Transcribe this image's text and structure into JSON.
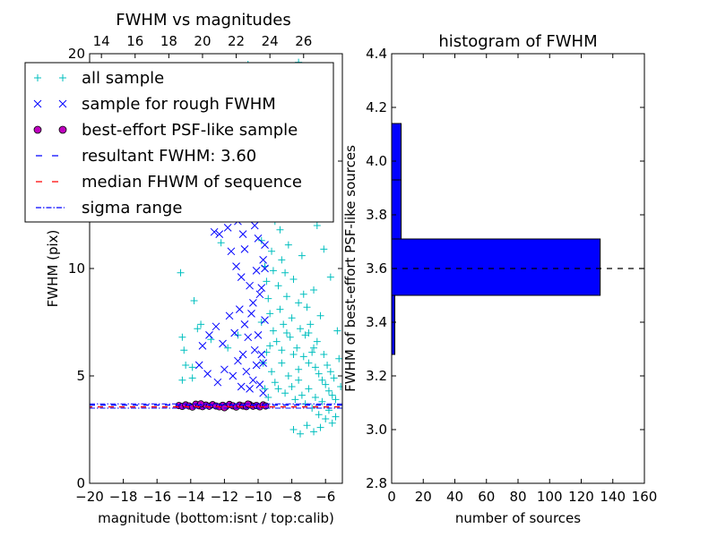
{
  "chart_data": [
    {
      "type": "scatter",
      "title": "FWHM vs magnitudes",
      "xlabel": "magnitude (bottom:isnt / top:calib)",
      "ylabel": "FWHM (pix)",
      "xlim": [
        -20,
        -5
      ],
      "ylim": [
        0,
        20
      ],
      "xticks": [
        "−20",
        "−18",
        "−16",
        "−14",
        "−12",
        "−10",
        "−8",
        "−6"
      ],
      "xtick_values": [
        -20,
        -18,
        -16,
        -14,
        -12,
        -10,
        -8,
        -6
      ],
      "yticks": [
        "0",
        "5",
        "10",
        "15",
        "20"
      ],
      "ytick_values": [
        0,
        5,
        10,
        15,
        20
      ],
      "top_xticks": [
        "14",
        "16",
        "18",
        "20",
        "22",
        "24",
        "26"
      ],
      "top_xtick_values": [
        14,
        16,
        18,
        20,
        22,
        24,
        26
      ],
      "top_axis_offset": 33.3,
      "legend": {
        "placement": "top-left",
        "entries": [
          {
            "label": "all sample",
            "marker": "plus",
            "color": "#00bfbf"
          },
          {
            "label": "sample for rough FWHM",
            "marker": "x",
            "color": "#0000ff"
          },
          {
            "label": "best-effort PSF-like sample",
            "marker": "circle",
            "color": "#bf00bf"
          },
          {
            "label": "resultant FWHM: 3.60",
            "marker": "dashed",
            "color": "#0000ff"
          },
          {
            "label": "median FHWM of sequence",
            "marker": "dashed",
            "color": "#ff0000"
          },
          {
            "label": "sigma range",
            "marker": "dashdot",
            "color": "#0000ff"
          }
        ]
      },
      "resultant_fwhm": 3.6,
      "median_fwhm": 3.6,
      "sigma_range": [
        3.5,
        3.7
      ],
      "series": [
        {
          "name": "all sample",
          "marker": "plus",
          "color": "#00bfbf",
          "points": [
            [
              -14.5,
              6.8
            ],
            [
              -14.4,
              6.2
            ],
            [
              -14.6,
              9.8
            ],
            [
              -14.3,
              5.5
            ],
            [
              -14.5,
              4.8
            ],
            [
              -14.4,
              14.2
            ],
            [
              -13.9,
              4.9
            ],
            [
              -13.9,
              5.4
            ],
            [
              -13.8,
              8.5
            ],
            [
              -13.6,
              7.2
            ],
            [
              -13.4,
              7.4
            ],
            [
              -13.0,
              14.7
            ],
            [
              -12.8,
              6.7
            ],
            [
              -12.2,
              11.2
            ],
            [
              -11.8,
              6.3
            ],
            [
              -11.5,
              16.8
            ],
            [
              -11.4,
              17.5
            ],
            [
              -11.2,
              6.9
            ],
            [
              -10.9,
              18.4
            ],
            [
              -10.7,
              12.8
            ],
            [
              -10.6,
              19.5
            ],
            [
              -10.5,
              15.2
            ],
            [
              -10.3,
              13.5
            ],
            [
              -10.1,
              14.9
            ],
            [
              -9.9,
              12.6
            ],
            [
              -9.8,
              11.3
            ],
            [
              -9.7,
              14.4
            ],
            [
              -9.6,
              10.1
            ],
            [
              -9.5,
              9.4
            ],
            [
              -9.4,
              8.6
            ],
            [
              -9.3,
              7.9
            ],
            [
              -9.2,
              10.8
            ],
            [
              -9.1,
              7.1
            ],
            [
              -9.0,
              12.2
            ],
            [
              -8.9,
              6.6
            ],
            [
              -8.8,
              9.2
            ],
            [
              -8.7,
              8.1
            ],
            [
              -8.6,
              10.4
            ],
            [
              -8.5,
              7.4
            ],
            [
              -8.4,
              9.8
            ],
            [
              -8.3,
              8.7
            ],
            [
              -8.2,
              11.1
            ],
            [
              -8.1,
              6.8
            ],
            [
              -8.0,
              7.7
            ],
            [
              -7.9,
              9.5
            ],
            [
              -7.8,
              12.8
            ],
            [
              -7.7,
              6.3
            ],
            [
              -7.6,
              8.4
            ],
            [
              -7.5,
              7.2
            ],
            [
              -7.4,
              10.6
            ],
            [
              -7.3,
              5.9
            ],
            [
              -7.2,
              6.9
            ],
            [
              -7.1,
              8.2
            ],
            [
              -7.0,
              5.6
            ],
            [
              -6.9,
              7.4
            ],
            [
              -6.8,
              6.1
            ],
            [
              -6.7,
              9.0
            ],
            [
              -6.6,
              5.4
            ],
            [
              -6.5,
              6.6
            ],
            [
              -6.4,
              5.1
            ],
            [
              -6.3,
              7.8
            ],
            [
              -6.2,
              4.8
            ],
            [
              -6.1,
              6.0
            ],
            [
              -6.0,
              4.6
            ],
            [
              -5.9,
              5.5
            ],
            [
              -5.8,
              4.3
            ],
            [
              -5.7,
              5.2
            ],
            [
              -5.6,
              4.1
            ],
            [
              -5.5,
              4.9
            ],
            [
              -5.4,
              3.9
            ],
            [
              -9.2,
              5.2
            ],
            [
              -9.0,
              4.7
            ],
            [
              -8.8,
              4.4
            ],
            [
              -8.6,
              5.6
            ],
            [
              -8.4,
              4.2
            ],
            [
              -8.2,
              5.0
            ],
            [
              -8.0,
              4.5
            ],
            [
              -7.8,
              3.9
            ],
            [
              -7.6,
              4.8
            ],
            [
              -7.4,
              4.1
            ],
            [
              -7.2,
              3.7
            ],
            [
              -7.0,
              4.4
            ],
            [
              -6.8,
              3.5
            ],
            [
              -6.6,
              4.0
            ],
            [
              -6.4,
              3.2
            ],
            [
              -6.2,
              3.8
            ],
            [
              -6.0,
              3.0
            ],
            [
              -5.8,
              3.4
            ],
            [
              -5.6,
              2.8
            ],
            [
              -5.4,
              3.1
            ],
            [
              -7.9,
              2.5
            ],
            [
              -7.5,
              2.3
            ],
            [
              -7.1,
              2.7
            ],
            [
              -6.7,
              2.4
            ],
            [
              -6.3,
              2.6
            ],
            [
              -8.5,
              13.9
            ],
            [
              -8.1,
              15.6
            ],
            [
              -7.7,
              17.2
            ],
            [
              -7.3,
              14.8
            ],
            [
              -6.9,
              13.1
            ],
            [
              -8.3,
              18.9
            ],
            [
              -7.6,
              19.6
            ],
            [
              -9.4,
              16.4
            ],
            [
              -8.9,
              17.8
            ],
            [
              -6.5,
              12.0
            ],
            [
              -6.1,
              10.9
            ],
            [
              -5.7,
              9.6
            ],
            [
              -5.3,
              7.1
            ],
            [
              -5.2,
              5.8
            ],
            [
              -5.1,
              4.5
            ],
            [
              -8.6,
              6.2
            ],
            [
              -8.3,
              7.0
            ],
            [
              -7.9,
              6.0
            ],
            [
              -7.6,
              5.3
            ],
            [
              -7.3,
              8.8
            ],
            [
              -7.0,
              7.0
            ],
            [
              -6.7,
              6.3
            ],
            [
              -9.3,
              6.4
            ],
            [
              -9.1,
              9.9
            ],
            [
              -8.7,
              11.8
            ],
            [
              -9.6,
              4.4
            ],
            [
              -9.5,
              6.1
            ],
            [
              -9.7,
              5.6
            ],
            [
              -9.8,
              7.5
            ],
            [
              -9.4,
              4.0
            ]
          ]
        },
        {
          "name": "sample for rough FWHM",
          "marker": "x",
          "color": "#0000ff",
          "points": [
            [
              -12.6,
              11.7
            ],
            [
              -12.3,
              11.6
            ],
            [
              -11.8,
              11.9
            ],
            [
              -11.2,
              12.2
            ],
            [
              -10.9,
              11.6
            ],
            [
              -10.6,
              12.6
            ],
            [
              -10.4,
              13.1
            ],
            [
              -10.2,
              12.0
            ],
            [
              -10.0,
              11.4
            ],
            [
              -9.8,
              12.9
            ],
            [
              -11.6,
              10.8
            ],
            [
              -11.3,
              10.1
            ],
            [
              -11.0,
              9.6
            ],
            [
              -10.8,
              10.9
            ],
            [
              -10.5,
              9.2
            ],
            [
              -10.3,
              8.4
            ],
            [
              -10.1,
              9.9
            ],
            [
              -9.9,
              8.8
            ],
            [
              -9.7,
              10.4
            ],
            [
              -9.6,
              7.6
            ],
            [
              -13.3,
              6.4
            ],
            [
              -12.9,
              6.9
            ],
            [
              -12.5,
              7.3
            ],
            [
              -12.1,
              6.5
            ],
            [
              -11.7,
              7.8
            ],
            [
              -11.4,
              7.0
            ],
            [
              -11.1,
              8.1
            ],
            [
              -10.8,
              7.4
            ],
            [
              -10.6,
              6.8
            ],
            [
              -10.4,
              7.9
            ],
            [
              -10.2,
              6.2
            ],
            [
              -10.0,
              6.9
            ],
            [
              -9.8,
              6.0
            ],
            [
              -9.7,
              5.6
            ],
            [
              -10.9,
              6.0
            ],
            [
              -11.2,
              5.7
            ],
            [
              -12.0,
              5.3
            ],
            [
              -13.5,
              5.5
            ],
            [
              -13.0,
              5.1
            ],
            [
              -11.5,
              5.0
            ],
            [
              -10.7,
              5.2
            ],
            [
              -10.3,
              4.8
            ],
            [
              -10.1,
              5.5
            ],
            [
              -9.9,
              4.6
            ],
            [
              -9.7,
              4.2
            ],
            [
              -10.5,
              4.4
            ],
            [
              -11.0,
              4.5
            ],
            [
              -12.4,
              4.7
            ],
            [
              -9.8,
              9.1
            ],
            [
              -9.6,
              10.0
            ],
            [
              -9.6,
              11.1
            ],
            [
              -9.7,
              12.4
            ],
            [
              -9.8,
              13.6
            ],
            [
              -9.6,
              14.8
            ],
            [
              -9.7,
              15.9
            ],
            [
              -9.6,
              16.8
            ],
            [
              -9.7,
              17.7
            ],
            [
              -10.0,
              15.2
            ],
            [
              -10.4,
              14.1
            ],
            [
              -10.7,
              13.8
            ]
          ]
        },
        {
          "name": "best-effort PSF-like sample",
          "marker": "circle",
          "color": "#bf00bf",
          "points": [
            [
              -14.7,
              3.62
            ],
            [
              -14.5,
              3.58
            ],
            [
              -14.3,
              3.65
            ],
            [
              -14.1,
              3.6
            ],
            [
              -13.9,
              3.55
            ],
            [
              -13.7,
              3.68
            ],
            [
              -13.5,
              3.61
            ],
            [
              -13.3,
              3.57
            ],
            [
              -13.1,
              3.64
            ],
            [
              -12.9,
              3.59
            ],
            [
              -12.7,
              3.66
            ],
            [
              -12.5,
              3.6
            ],
            [
              -12.3,
              3.56
            ],
            [
              -12.1,
              3.63
            ],
            [
              -11.9,
              3.58
            ],
            [
              -11.7,
              3.67
            ],
            [
              -11.5,
              3.61
            ],
            [
              -11.3,
              3.55
            ],
            [
              -11.1,
              3.64
            ],
            [
              -10.9,
              3.6
            ],
            [
              -10.7,
              3.57
            ],
            [
              -10.5,
              3.66
            ],
            [
              -10.3,
              3.59
            ],
            [
              -10.1,
              3.62
            ],
            [
              -9.9,
              3.56
            ],
            [
              -9.7,
              3.65
            ],
            [
              -9.55,
              3.6
            ],
            [
              -13.4,
              3.7
            ],
            [
              -12.0,
              3.52
            ],
            [
              -10.6,
              3.69
            ]
          ]
        }
      ]
    },
    {
      "type": "bar",
      "orientation": "horizontal",
      "title": "histogram of FWHM",
      "xlabel": "number of sources",
      "ylabel": "FWHM of best-effort PSF-like sources",
      "xlim": [
        0,
        160
      ],
      "ylim": [
        2.8,
        4.4
      ],
      "xticks": [
        "0",
        "20",
        "40",
        "60",
        "80",
        "100",
        "120",
        "140",
        "160"
      ],
      "xtick_values": [
        0,
        20,
        40,
        60,
        80,
        100,
        120,
        140,
        160
      ],
      "yticks": [
        "2.8",
        "3.0",
        "3.2",
        "3.4",
        "3.6",
        "3.8",
        "4.0",
        "4.2",
        "4.4"
      ],
      "ytick_values": [
        2.8,
        3.0,
        3.2,
        3.4,
        3.6,
        3.8,
        4.0,
        4.2,
        4.4
      ],
      "bar_color": "#0000ff",
      "reference_line": 3.6,
      "bins": [
        {
          "from": 3.28,
          "to": 3.5,
          "count": 2
        },
        {
          "from": 3.5,
          "to": 3.71,
          "count": 132
        },
        {
          "from": 3.71,
          "to": 3.93,
          "count": 6
        },
        {
          "from": 3.93,
          "to": 4.14,
          "count": 6
        }
      ]
    }
  ]
}
